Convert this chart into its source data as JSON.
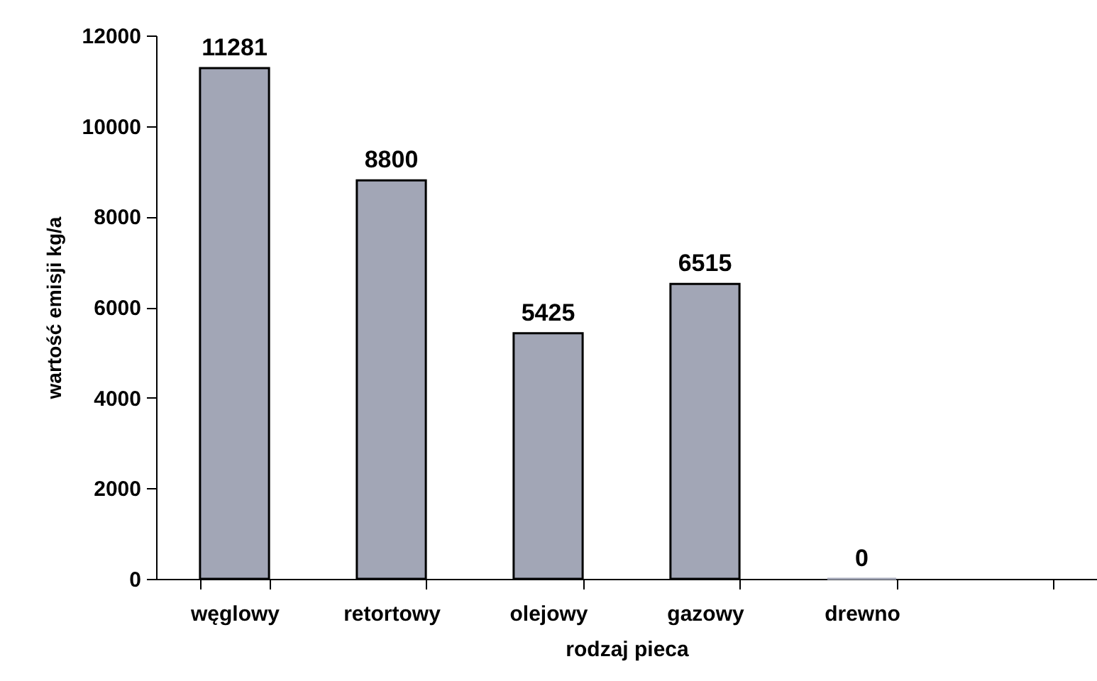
{
  "chart_data": {
    "type": "bar",
    "xlabel": "rodzaj pieca",
    "ylabel": "wartość emisji kg/a",
    "categories": [
      "węglowy",
      "retortowy",
      "olejowy",
      "gazowy",
      "drewno",
      null
    ],
    "values": [
      11281,
      8800,
      5425,
      6515,
      0,
      null
    ],
    "color": "#a2a6b6",
    "ylim": [
      0,
      12000
    ],
    "yticks": [
      0,
      2000,
      4000,
      6000,
      8000,
      10000,
      12000
    ],
    "data_labels": true,
    "grid": false
  }
}
